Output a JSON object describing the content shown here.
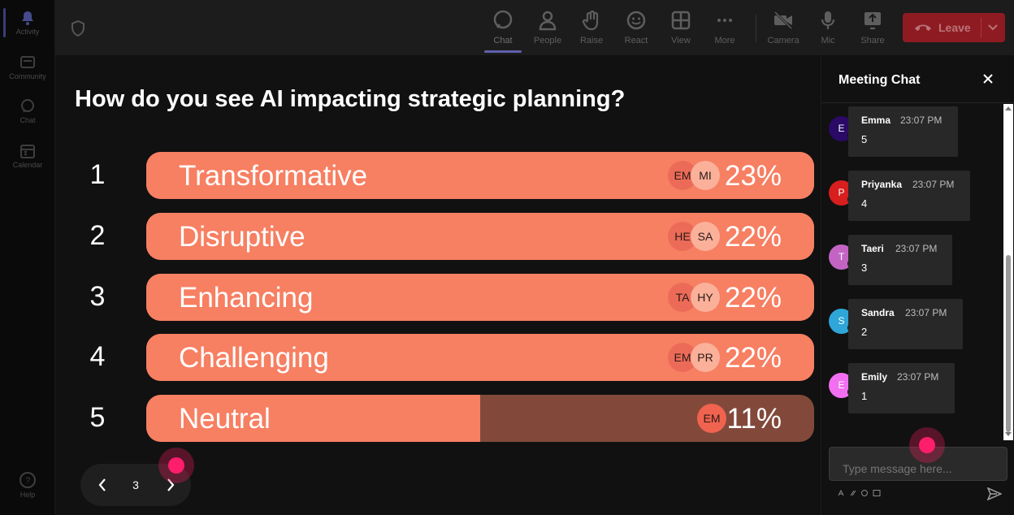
{
  "rail": {
    "items": [
      {
        "label": "Activity"
      },
      {
        "label": "Community"
      },
      {
        "label": "Chat"
      },
      {
        "label": "Calendar"
      },
      {
        "label": "Help"
      }
    ]
  },
  "toolbar": {
    "items": [
      {
        "label": "Chat"
      },
      {
        "label": "People"
      },
      {
        "label": "Raise"
      },
      {
        "label": "React"
      },
      {
        "label": "View"
      },
      {
        "label": "More"
      },
      {
        "label": "Camera"
      },
      {
        "label": "Mic"
      },
      {
        "label": "Share"
      }
    ],
    "leave_label": "Leave"
  },
  "poll": {
    "question": "How do you see AI impacting strategic planning?",
    "options": [
      {
        "number": "1",
        "label": "Transformative",
        "percent": "23%",
        "fill": 1.0,
        "avatars": [
          "EM",
          "MI"
        ]
      },
      {
        "number": "2",
        "label": "Disruptive",
        "percent": "22%",
        "fill": 1.0,
        "avatars": [
          "HE",
          "SA"
        ]
      },
      {
        "number": "3",
        "label": "Enhancing",
        "percent": "22%",
        "fill": 1.0,
        "avatars": [
          "TA",
          "HY"
        ]
      },
      {
        "number": "4",
        "label": "Challenging",
        "percent": "22%",
        "fill": 1.0,
        "avatars": [
          "EM",
          "PR"
        ]
      },
      {
        "number": "5",
        "label": "Neutral",
        "percent": "11%",
        "fill": 0.5,
        "avatars": [
          "EM"
        ]
      }
    ],
    "colors": {
      "bar": "#f77f62",
      "bar_remaining": "#82493b"
    }
  },
  "pager": {
    "current": "3"
  },
  "chat": {
    "title": "Meeting Chat",
    "messages": [
      {
        "initial": "E",
        "name": "Emma",
        "time": "23:07 PM",
        "text": "5",
        "avatar_color": "#2a0a66"
      },
      {
        "initial": "P",
        "name": "Priyanka",
        "time": "23:07 PM",
        "text": "4",
        "avatar_color": "#d81e1e"
      },
      {
        "initial": "T",
        "name": "Taeri",
        "time": "23:07 PM",
        "text": "3",
        "avatar_color": "#c364c5"
      },
      {
        "initial": "S",
        "name": "Sandra",
        "time": "23:07 PM",
        "text": "2",
        "avatar_color": "#2ea6d8"
      },
      {
        "initial": "E",
        "name": "Emily",
        "time": "23:07 PM",
        "text": "1",
        "avatar_color": "#f26ff2"
      }
    ],
    "composer_placeholder": "Type message here..."
  }
}
